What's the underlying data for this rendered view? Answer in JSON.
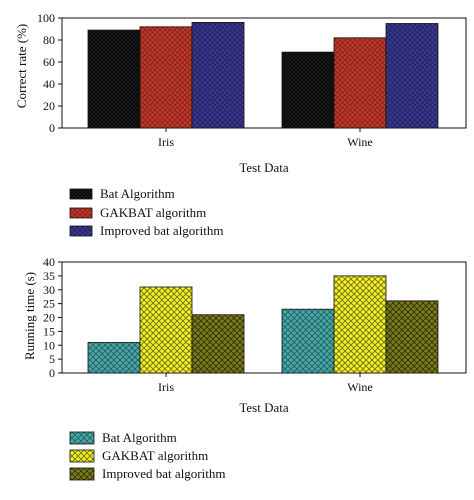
{
  "colors": {
    "bat_top": "#141414",
    "gakbat_top": "#c0392b",
    "improved_top": "#3b3a8c",
    "bat_bottom": "#4aa6a6",
    "gakbat_bottom": "#f2ee2a",
    "improved_bottom": "#7a7a1a"
  },
  "chart_data": [
    {
      "type": "bar",
      "categories": [
        "Iris",
        "Wine"
      ],
      "series": [
        {
          "name": "Bat Algorithm",
          "values": [
            89,
            69
          ]
        },
        {
          "name": "GAKBAT algorithm",
          "values": [
            92,
            82
          ]
        },
        {
          "name": "Improved bat algorithm",
          "values": [
            96,
            95
          ]
        }
      ],
      "xlabel": "Test Data",
      "ylabel": "Correct rate (%)",
      "ylim": [
        0,
        100
      ],
      "yticks": [
        0,
        20,
        40,
        60,
        80,
        100
      ],
      "legend_position": "bottom-left"
    },
    {
      "type": "bar",
      "categories": [
        "Iris",
        "Wine"
      ],
      "series": [
        {
          "name": "Bat Algorithm",
          "values": [
            11,
            23
          ]
        },
        {
          "name": "GAKBAT algorithm",
          "values": [
            31,
            35
          ]
        },
        {
          "name": "Improved bat algorithm",
          "values": [
            21,
            26
          ]
        }
      ],
      "xlabel": "Test Data",
      "ylabel": "Running time (s)",
      "ylim": [
        0,
        40
      ],
      "yticks": [
        0,
        5,
        10,
        15,
        20,
        25,
        30,
        35,
        40
      ],
      "legend_position": "bottom-left"
    }
  ]
}
